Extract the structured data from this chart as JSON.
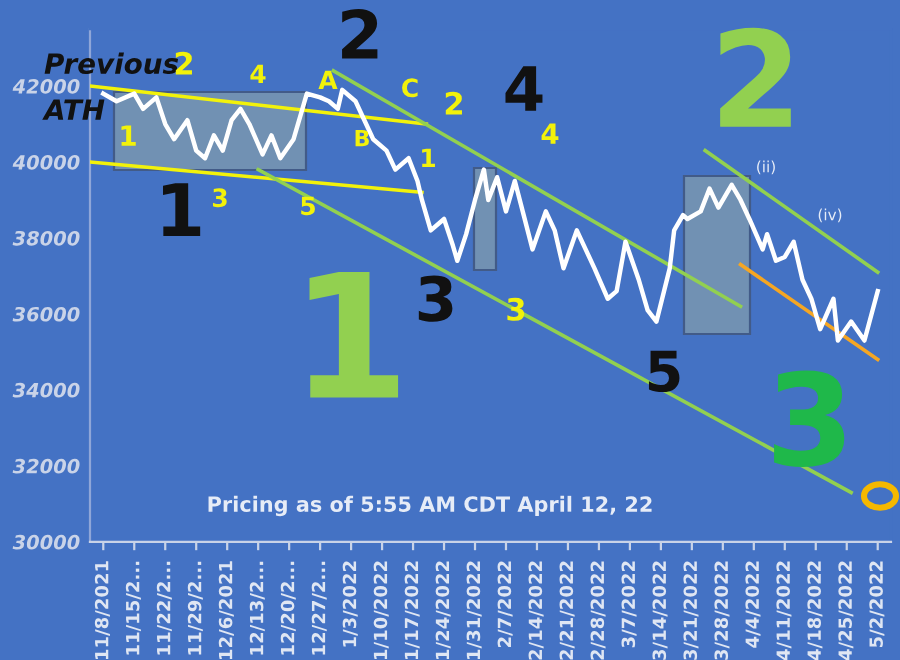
{
  "chart_data": {
    "type": "line",
    "xlim": [
      "2021-11-05",
      "2022-05-05"
    ],
    "ylim": [
      30000,
      43500
    ],
    "yticks": [
      30000,
      32000,
      34000,
      36000,
      38000,
      40000,
      42000
    ],
    "xticks": [
      {
        "value": "2021-11-08",
        "label": "11/8/2021"
      },
      {
        "value": "2021-11-15",
        "label": "11/15/2..."
      },
      {
        "value": "2021-11-22",
        "label": "11/22/2..."
      },
      {
        "value": "2021-11-29",
        "label": "11/29/2..."
      },
      {
        "value": "2021-12-06",
        "label": "12/6/2021"
      },
      {
        "value": "2021-12-13",
        "label": "12/13/2..."
      },
      {
        "value": "2021-12-20",
        "label": "12/20/2..."
      },
      {
        "value": "2021-12-27",
        "label": "12/27/2..."
      },
      {
        "value": "2022-01-03",
        "label": "1/3/2022"
      },
      {
        "value": "2022-01-10",
        "label": "1/10/2022"
      },
      {
        "value": "2022-01-17",
        "label": "1/17/2022"
      },
      {
        "value": "2022-01-24",
        "label": "1/24/2022"
      },
      {
        "value": "2022-01-31",
        "label": "1/31/2022"
      },
      {
        "value": "2022-02-07",
        "label": "2/7/2022"
      },
      {
        "value": "2022-02-14",
        "label": "2/14/2022"
      },
      {
        "value": "2022-02-21",
        "label": "2/21/2022"
      },
      {
        "value": "2022-02-28",
        "label": "2/28/2022"
      },
      {
        "value": "2022-03-07",
        "label": "3/7/2022"
      },
      {
        "value": "2022-03-14",
        "label": "3/14/2022"
      },
      {
        "value": "2022-03-21",
        "label": "3/21/2022"
      },
      {
        "value": "2022-03-28",
        "label": "3/28/2022"
      },
      {
        "value": "2022-04-04",
        "label": "4/4/2022"
      },
      {
        "value": "2022-04-11",
        "label": "4/11/2022"
      },
      {
        "value": "2022-04-18",
        "label": "4/18/2022"
      },
      {
        "value": "2022-04-25",
        "label": "4/25/2022"
      },
      {
        "value": "2022-05-02",
        "label": "5/2/2022"
      }
    ],
    "grid": false,
    "legend": false,
    "marker": "none",
    "line_style": "solid",
    "series": [
      {
        "color": "#ffffff",
        "x": [
          "2021-11-08",
          "2021-11-11",
          "2021-11-15",
          "2021-11-17",
          "2021-11-20",
          "2021-11-22",
          "2021-11-24",
          "2021-11-27",
          "2021-11-29",
          "2021-12-01",
          "2021-12-03",
          "2021-12-05",
          "2021-12-07",
          "2021-12-09",
          "2021-12-11",
          "2021-12-14",
          "2021-12-16",
          "2021-12-18",
          "2021-12-21",
          "2021-12-23",
          "2021-12-24",
          "2021-12-27",
          "2021-12-29",
          "2021-12-31",
          "2022-01-01",
          "2022-01-04",
          "2022-01-06",
          "2022-01-08",
          "2022-01-11",
          "2022-01-13",
          "2022-01-16",
          "2022-01-18",
          "2022-01-19",
          "2022-01-21",
          "2022-01-24",
          "2022-01-26",
          "2022-01-27",
          "2022-01-29",
          "2022-01-31",
          "2022-02-02",
          "2022-02-03",
          "2022-02-05",
          "2022-02-07",
          "2022-02-09",
          "2022-02-11",
          "2022-02-13",
          "2022-02-16",
          "2022-02-18",
          "2022-02-20",
          "2022-02-23",
          "2022-02-25",
          "2022-02-27",
          "2022-03-02",
          "2022-03-04",
          "2022-03-06",
          "2022-03-09",
          "2022-03-11",
          "2022-03-13",
          "2022-03-16",
          "2022-03-17",
          "2022-03-19",
          "2022-03-20",
          "2022-03-23",
          "2022-03-25",
          "2022-03-27",
          "2022-03-30",
          "2022-04-01",
          "2022-04-03",
          "2022-04-06",
          "2022-04-07",
          "2022-04-09",
          "2022-04-11",
          "2022-04-13",
          "2022-04-15",
          "2022-04-17",
          "2022-04-19",
          "2022-04-22",
          "2022-04-23",
          "2022-04-26",
          "2022-04-29",
          "2022-05-02"
        ],
        "values": [
          41800,
          41600,
          41800,
          41400,
          41700,
          41000,
          40600,
          41100,
          40300,
          40100,
          40700,
          40300,
          41100,
          41400,
          41000,
          40200,
          40700,
          40100,
          40600,
          41400,
          41800,
          41700,
          41600,
          41400,
          41900,
          41600,
          41100,
          40600,
          40300,
          39800,
          40100,
          39500,
          39000,
          38200,
          38500,
          37800,
          37400,
          38100,
          39000,
          39800,
          39000,
          39600,
          38700,
          39500,
          38600,
          37700,
          38700,
          38200,
          37200,
          38200,
          37700,
          37200,
          36400,
          36600,
          37900,
          36900,
          36100,
          35800,
          37200,
          38200,
          38600,
          38500,
          38700,
          39300,
          38800,
          39400,
          39000,
          38500,
          37700,
          38100,
          37400,
          37500,
          37900,
          36900,
          36400,
          35600,
          36400,
          35300,
          35800,
          35300,
          36600
        ]
      },
      {
        "type": "line",
        "color": "#f2f20a",
        "x": [
          "2021-11-05",
          "2022-01-20"
        ],
        "values": [
          42000,
          41000
        ]
      },
      {
        "type": "line",
        "color": "#f2f20a",
        "x": [
          "2021-11-05",
          "2022-01-19"
        ],
        "values": [
          40000,
          39200
        ]
      },
      {
        "type": "line",
        "color": "#92d050",
        "x": [
          "2021-12-30",
          "2022-04-01"
        ],
        "values": [
          42400,
          36200
        ]
      },
      {
        "type": "line",
        "color": "#92d050",
        "x": [
          "2021-12-13",
          "2022-04-26"
        ],
        "values": [
          39800,
          31300
        ]
      },
      {
        "type": "line",
        "color": "#92d050",
        "x": [
          "2022-03-24",
          "2022-05-02"
        ],
        "values": [
          40300,
          37100
        ]
      },
      {
        "type": "line",
        "color": "#f5a623",
        "x": [
          "2022-04-01",
          "2022-05-02"
        ],
        "values": [
          37300,
          34800
        ]
      }
    ],
    "annotations": [
      "Previous",
      "ATH",
      "2",
      "4",
      "1",
      "3",
      "5",
      "A",
      "B",
      "C",
      "2",
      "1",
      "3",
      "4",
      "1",
      "2",
      "3",
      "4",
      "5",
      "1",
      "2",
      "3",
      "(ii)",
      "(iv)",
      "Pricing as of 5:55 AM CDT April 12, 22"
    ]
  }
}
